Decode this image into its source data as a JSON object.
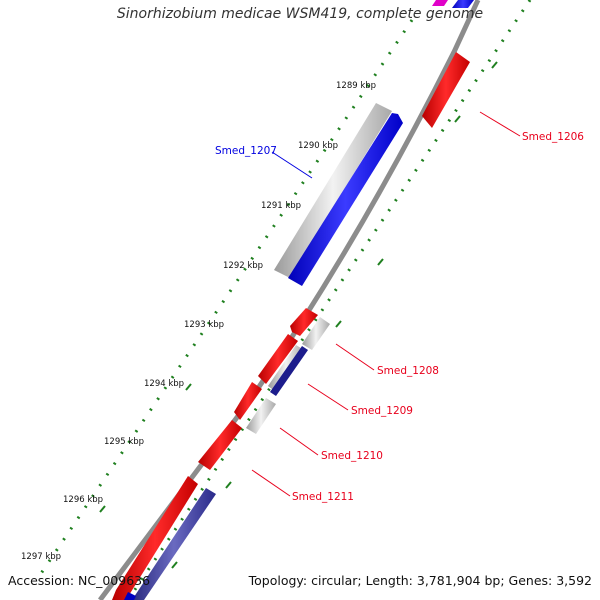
{
  "title": "Sinorhizobium medicae WSM419, complete genome",
  "footer": {
    "accession": "Accession: NC_009636",
    "topology": "Topology: circular; Length: 3,781,904 bp; Genes: 3,592"
  },
  "scale_labels": [
    "1289 kbp",
    "1290 kbp",
    "1291 kbp",
    "1292 kbp",
    "1293 kbp",
    "1294 kbp",
    "1295 kbp",
    "1296 kbp",
    "1297 kbp"
  ],
  "gene_labels": [
    {
      "text": "Smed_1206",
      "color": "#e8001c"
    },
    {
      "text": "Smed_1207",
      "color": "#0000e0"
    },
    {
      "text": "Smed_1208",
      "color": "#e8001c"
    },
    {
      "text": "Smed_1209",
      "color": "#e8001c"
    },
    {
      "text": "Smed_1210",
      "color": "#e8001c"
    },
    {
      "text": "Smed_1211",
      "color": "#e8001c"
    }
  ],
  "colors": {
    "forward_cds": "#0000ff",
    "reverse_cds": "#ee0000",
    "gene_bar": "#c4c4c4",
    "rna": "#3c3c9c",
    "backbone": "#8c8c8c",
    "dots": "#208020"
  }
}
